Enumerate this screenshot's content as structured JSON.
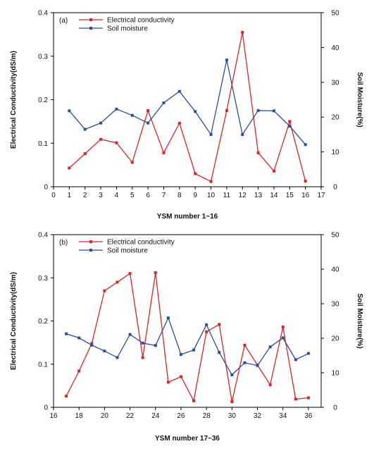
{
  "chart_data": [
    {
      "type": "line",
      "panel_label": "(a)",
      "xlabel": "YSM number 1~16",
      "ylabel_left": "Electrical Conductivity(dS/m)",
      "ylabel_right": "Soil Moisture(%)",
      "xlim": [
        0,
        17
      ],
      "ylim_left": [
        0,
        0.4
      ],
      "ylim_right": [
        0,
        50
      ],
      "x_ticks": [
        0,
        1,
        2,
        3,
        4,
        5,
        6,
        7,
        8,
        9,
        10,
        11,
        12,
        13,
        14,
        15,
        16,
        17
      ],
      "y_ticks_left": [
        "0",
        "0.1",
        "0.2",
        "0.3",
        "0.4"
      ],
      "y_ticks_right": [
        "0",
        "10",
        "20",
        "30",
        "40",
        "50"
      ],
      "legend_position": "top-left",
      "x": [
        1,
        2,
        3,
        4,
        5,
        6,
        7,
        8,
        9,
        10,
        11,
        12,
        13,
        14,
        15,
        16
      ],
      "series": [
        {
          "name": "Electrical conductivity",
          "axis": "left",
          "color": "#d62728",
          "values": [
            0.043,
            0.076,
            0.109,
            0.101,
            0.056,
            0.175,
            0.078,
            0.146,
            0.03,
            0.012,
            0.175,
            0.355,
            0.078,
            0.036,
            0.15,
            0.013
          ]
        },
        {
          "name": "Soil moisture",
          "axis": "right",
          "color": "#2a4d9c",
          "values": [
            21.8,
            16.5,
            18.3,
            22.3,
            20.5,
            18.3,
            24.1,
            27.4,
            21.6,
            15.0,
            36.4,
            15.0,
            21.9,
            21.8,
            17.4,
            12.1
          ]
        }
      ]
    },
    {
      "type": "line",
      "panel_label": "(b)",
      "xlabel": "YSM number 17~36",
      "ylabel_left": "Electrical Conductivity(dS/m)",
      "ylabel_right": "Soil Moisture(%)",
      "xlim": [
        16,
        37
      ],
      "ylim_left": [
        0,
        0.4
      ],
      "ylim_right": [
        0,
        50
      ],
      "x_ticks": [
        16,
        18,
        20,
        22,
        24,
        26,
        28,
        30,
        32,
        34,
        36
      ],
      "y_ticks_left": [
        "0",
        "0.1",
        "0.2",
        "0.3",
        "0.4"
      ],
      "y_ticks_right": [
        "0",
        "10",
        "20",
        "30",
        "40",
        "50"
      ],
      "legend_position": "top-left",
      "x": [
        17,
        18,
        19,
        20,
        21,
        22,
        23,
        24,
        25,
        26,
        27,
        28,
        29,
        30,
        31,
        32,
        33,
        34,
        35,
        36
      ],
      "series": [
        {
          "name": "Electrical conductivity",
          "axis": "left",
          "color": "#d62728",
          "values": [
            0.026,
            0.084,
            0.148,
            0.27,
            0.29,
            0.31,
            0.115,
            0.312,
            0.058,
            0.071,
            0.015,
            0.175,
            0.192,
            0.013,
            0.144,
            0.098,
            0.052,
            0.186,
            0.019,
            0.022
          ]
        },
        {
          "name": "Soil moisture",
          "axis": "right",
          "color": "#2a4d9c",
          "values": [
            21.3,
            20.1,
            18.0,
            16.3,
            14.4,
            21.1,
            18.6,
            17.9,
            25.9,
            15.3,
            16.6,
            23.9,
            15.9,
            9.4,
            12.9,
            12.1,
            17.5,
            20.1,
            13.8,
            15.6
          ]
        }
      ]
    }
  ]
}
